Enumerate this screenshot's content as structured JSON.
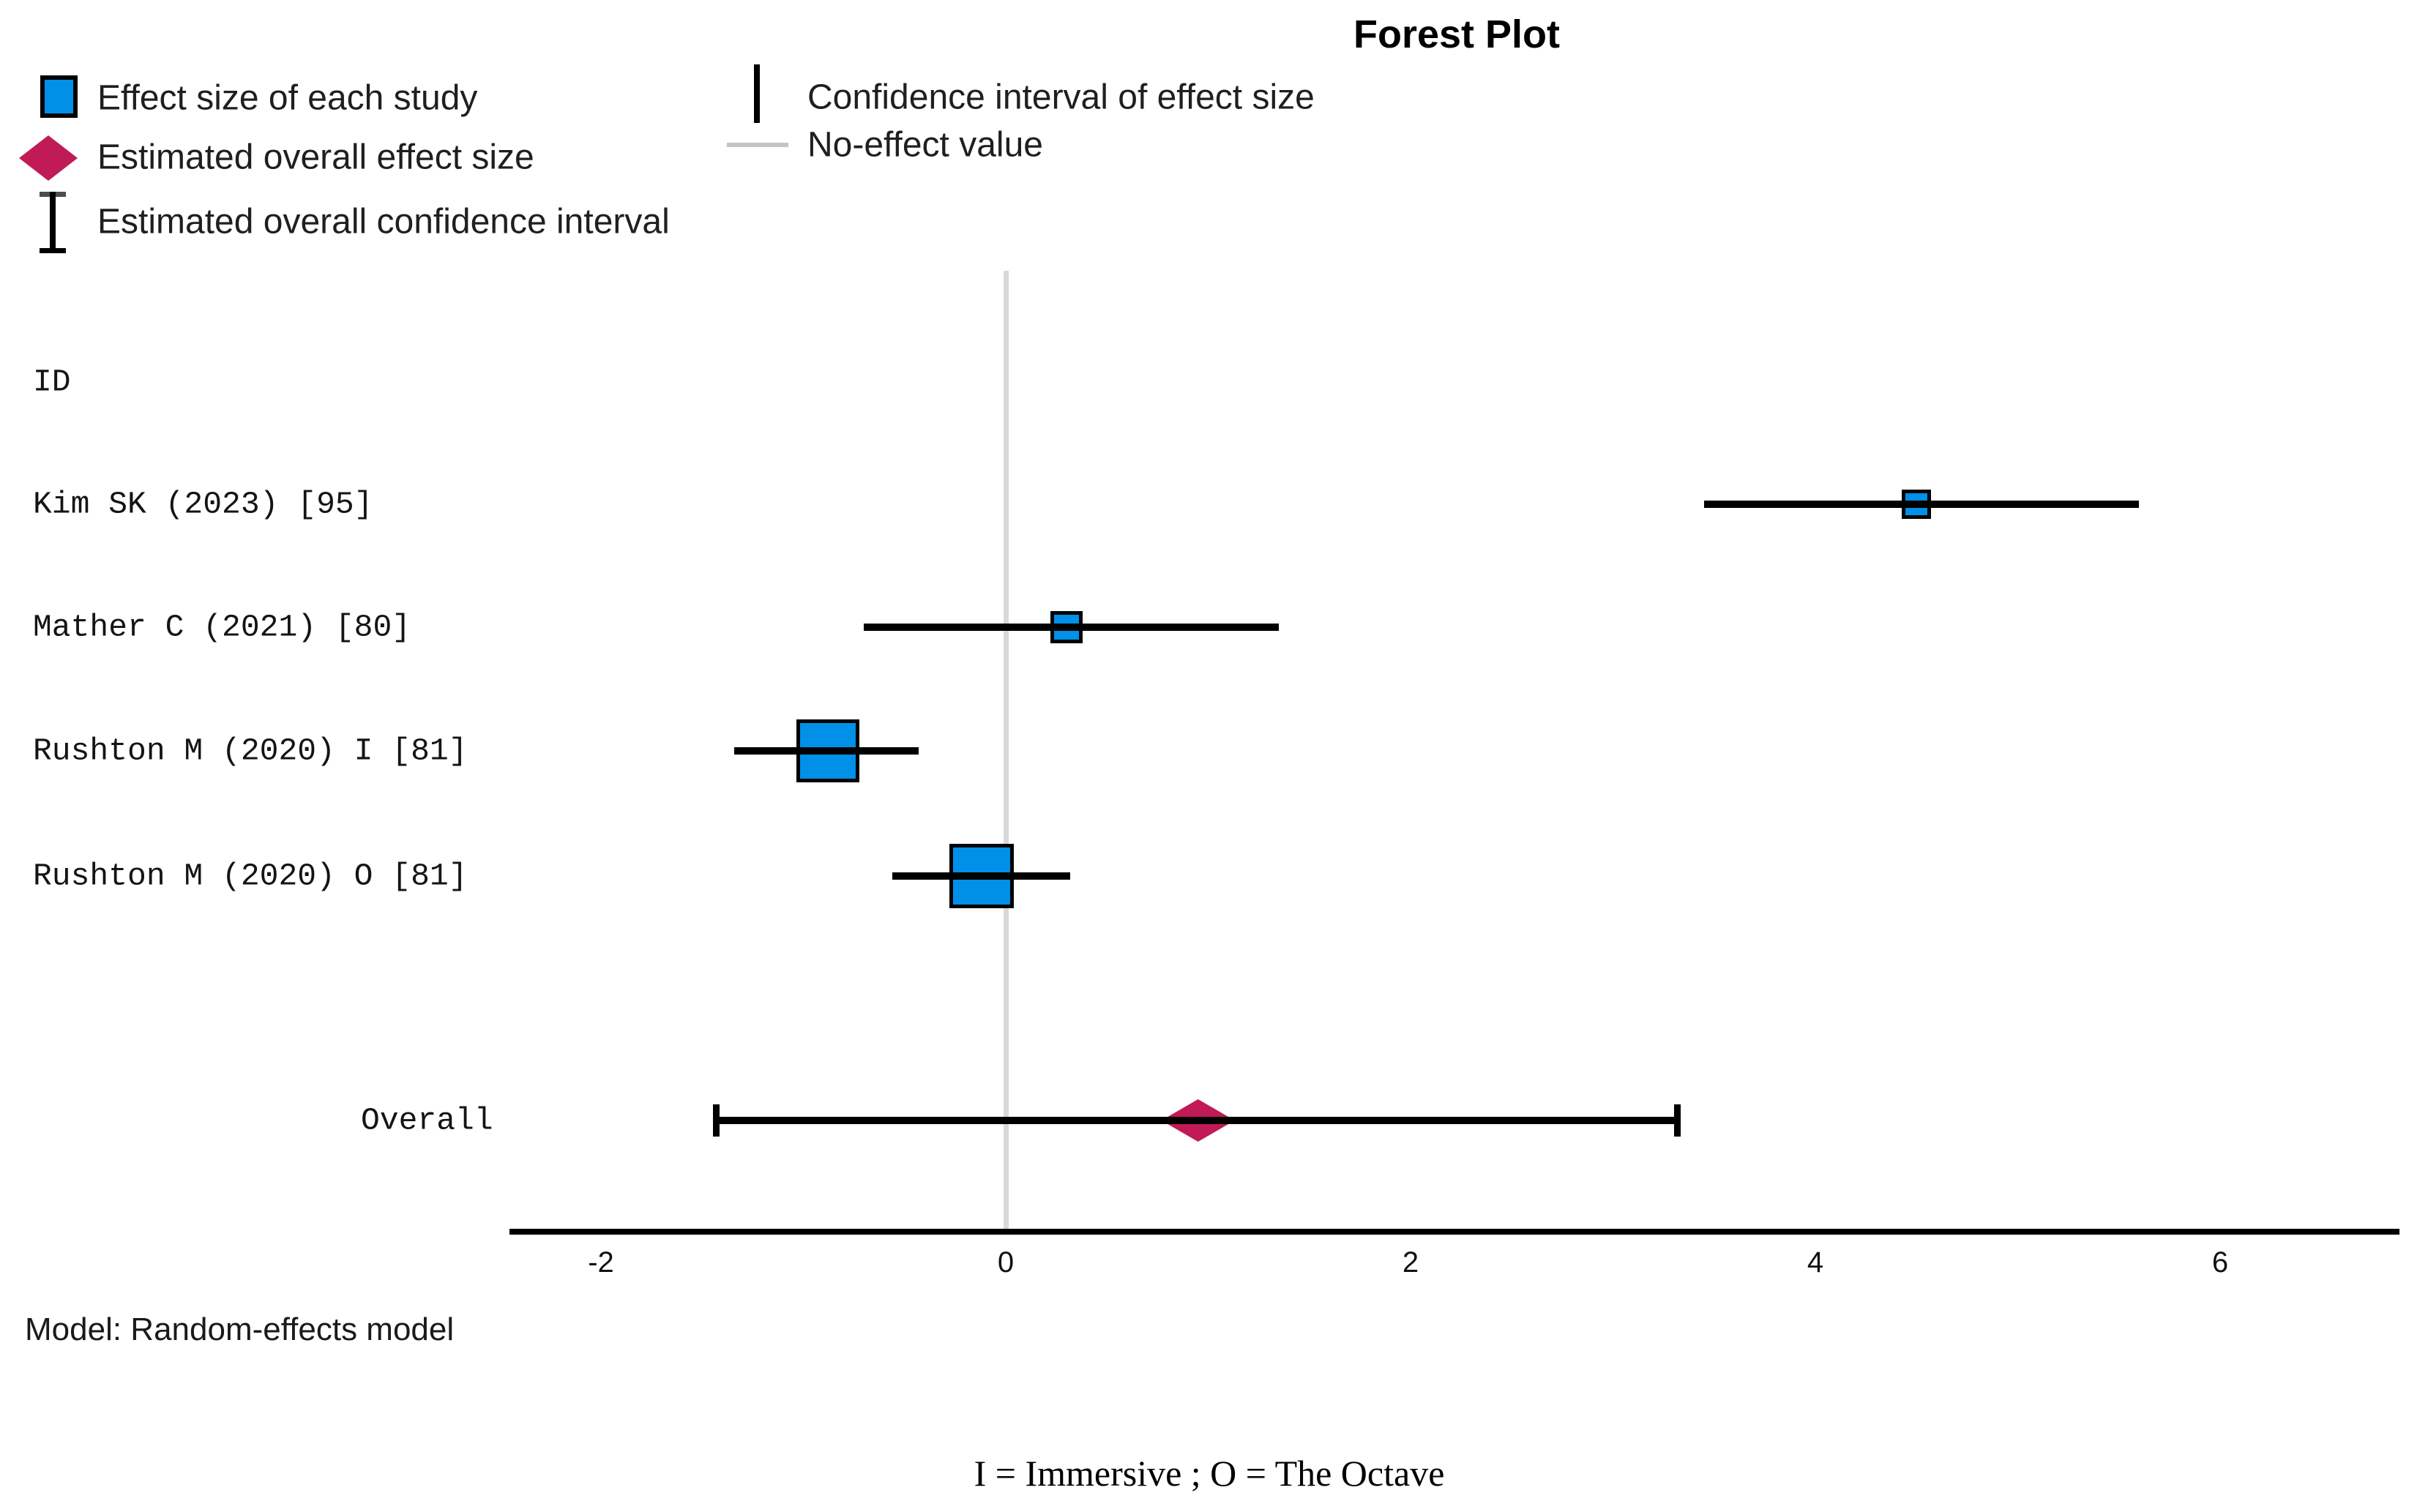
{
  "title": "Forest Plot",
  "column_header": "ID",
  "legend": {
    "left": [
      {
        "icon": "blue-square",
        "label": "Effect size of each study"
      },
      {
        "icon": "crimson-diamond",
        "label": "Estimated overall effect size"
      },
      {
        "icon": "i-beam",
        "label": "Estimated overall confidence interval"
      }
    ],
    "right": [
      {
        "icon": "vertical-line",
        "label": "Confidence interval of effect size"
      },
      {
        "icon": "gray-line",
        "label": "No-effect value"
      }
    ]
  },
  "chart_data": {
    "type": "forest",
    "no_effect_value": 0,
    "x_ticks": [
      -2,
      0,
      2,
      4,
      6
    ],
    "xlim": [
      -2.45,
      6.89
    ],
    "grid": false,
    "studies": [
      {
        "id": "Kim SK (2023)  [95]",
        "effect": 4.5,
        "ci_low": 3.45,
        "ci_high": 5.6,
        "marker_size_px": 40
      },
      {
        "id": "Mather C (2021)  [80]",
        "effect": 0.3,
        "ci_low": -0.7,
        "ci_high": 1.35,
        "marker_size_px": 44
      },
      {
        "id": "Rushton M (2020) I [81]",
        "effect": -0.88,
        "ci_low": -1.34,
        "ci_high": -0.43,
        "marker_size_px": 86
      },
      {
        "id": "Rushton M (2020) O [81]",
        "effect": -0.12,
        "ci_low": -0.56,
        "ci_high": 0.32,
        "marker_size_px": 88
      }
    ],
    "overall": {
      "id": "Overall",
      "effect": 0.95,
      "ci_low": -1.43,
      "ci_high": 3.32
    }
  },
  "footnotes": {
    "model": "Model: Random-effects model",
    "note": "I = Immersive ; O = The Octave"
  },
  "colors": {
    "study_marker": "#0090e8",
    "overall_marker": "#c01a57",
    "ci_line": "#000000",
    "no_effect_line": "#d9d9d9"
  }
}
